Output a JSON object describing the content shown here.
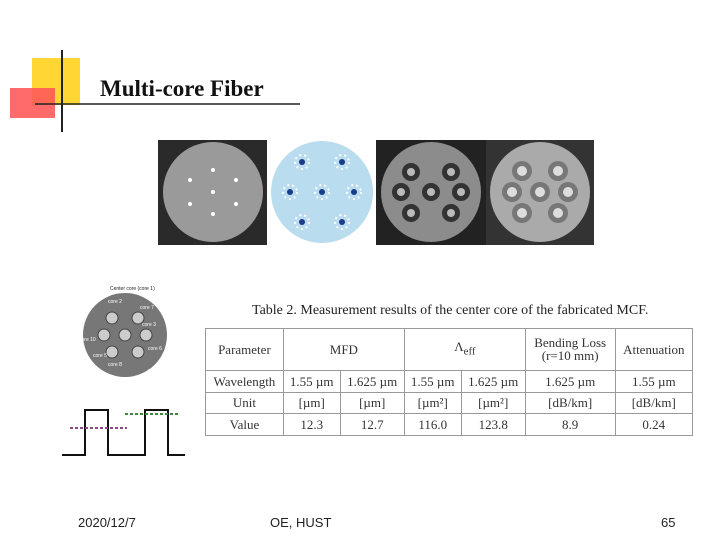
{
  "header": {
    "title": "Multi-core Fiber"
  },
  "figure": {
    "labels": [
      "Center core (core 1)",
      "Marker",
      "core 2",
      "core 7",
      "core 3",
      "core 10",
      "core 5",
      "core 6",
      "core 8",
      "Trench"
    ]
  },
  "table": {
    "caption": "Table 2. Measurement results of the center core of the fabricated MCF.",
    "header": [
      "Parameter",
      "MFD",
      {
        "symbol": "Λ",
        "sub": "eff"
      },
      {
        "line1": "Bending Loss",
        "line2": "(r=10 mm)"
      },
      "Attenuation"
    ],
    "rows": [
      [
        "Wavelength",
        "1.55 µm",
        "1.625 µm",
        "1.55 µm",
        "1.625 µm",
        "1.625 µm",
        "1.55 µm"
      ],
      [
        "Unit",
        "[µm]",
        "[µm]",
        "[µm²]",
        "[µm²]",
        "[dB/km]",
        "[dB/km]"
      ],
      [
        "Value",
        "12.3",
        "12.7",
        "116.0",
        "123.8",
        "8.9",
        "0.24"
      ]
    ]
  },
  "footer": {
    "date": "2020/12/7",
    "org": "OE, HUST",
    "page": "65"
  }
}
